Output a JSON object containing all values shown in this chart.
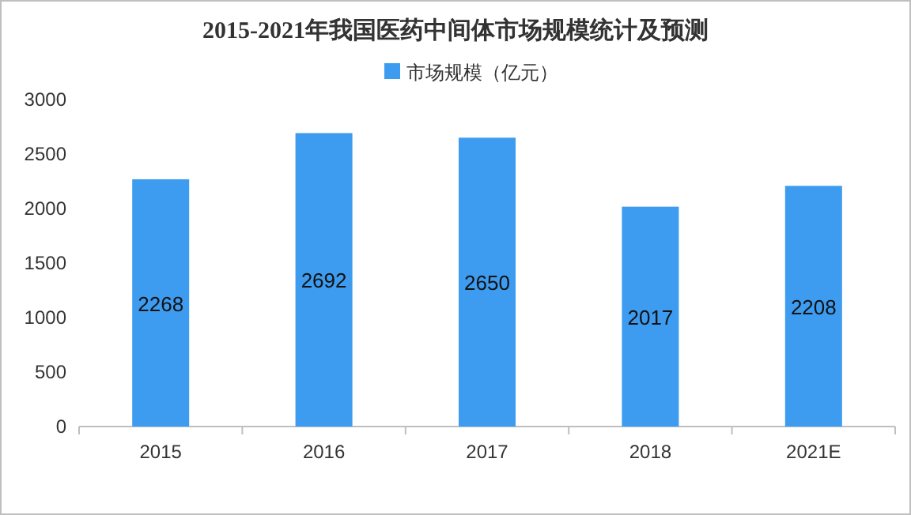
{
  "chart_data": {
    "type": "bar",
    "title": "2015-2021年我国医药中间体市场规模统计及预测",
    "categories": [
      "2015",
      "2016",
      "2017",
      "2018",
      "2021E"
    ],
    "series": [
      {
        "name": "市场规模（亿元）",
        "color": "#3d9cf0",
        "values": [
          2268,
          2692,
          2650,
          2017,
          2208
        ]
      }
    ],
    "ylim": [
      0,
      3000
    ],
    "yticks": [
      0,
      500,
      1000,
      1500,
      2000,
      2500,
      3000
    ],
    "data_labels": true,
    "legend": "top",
    "grid": false
  }
}
